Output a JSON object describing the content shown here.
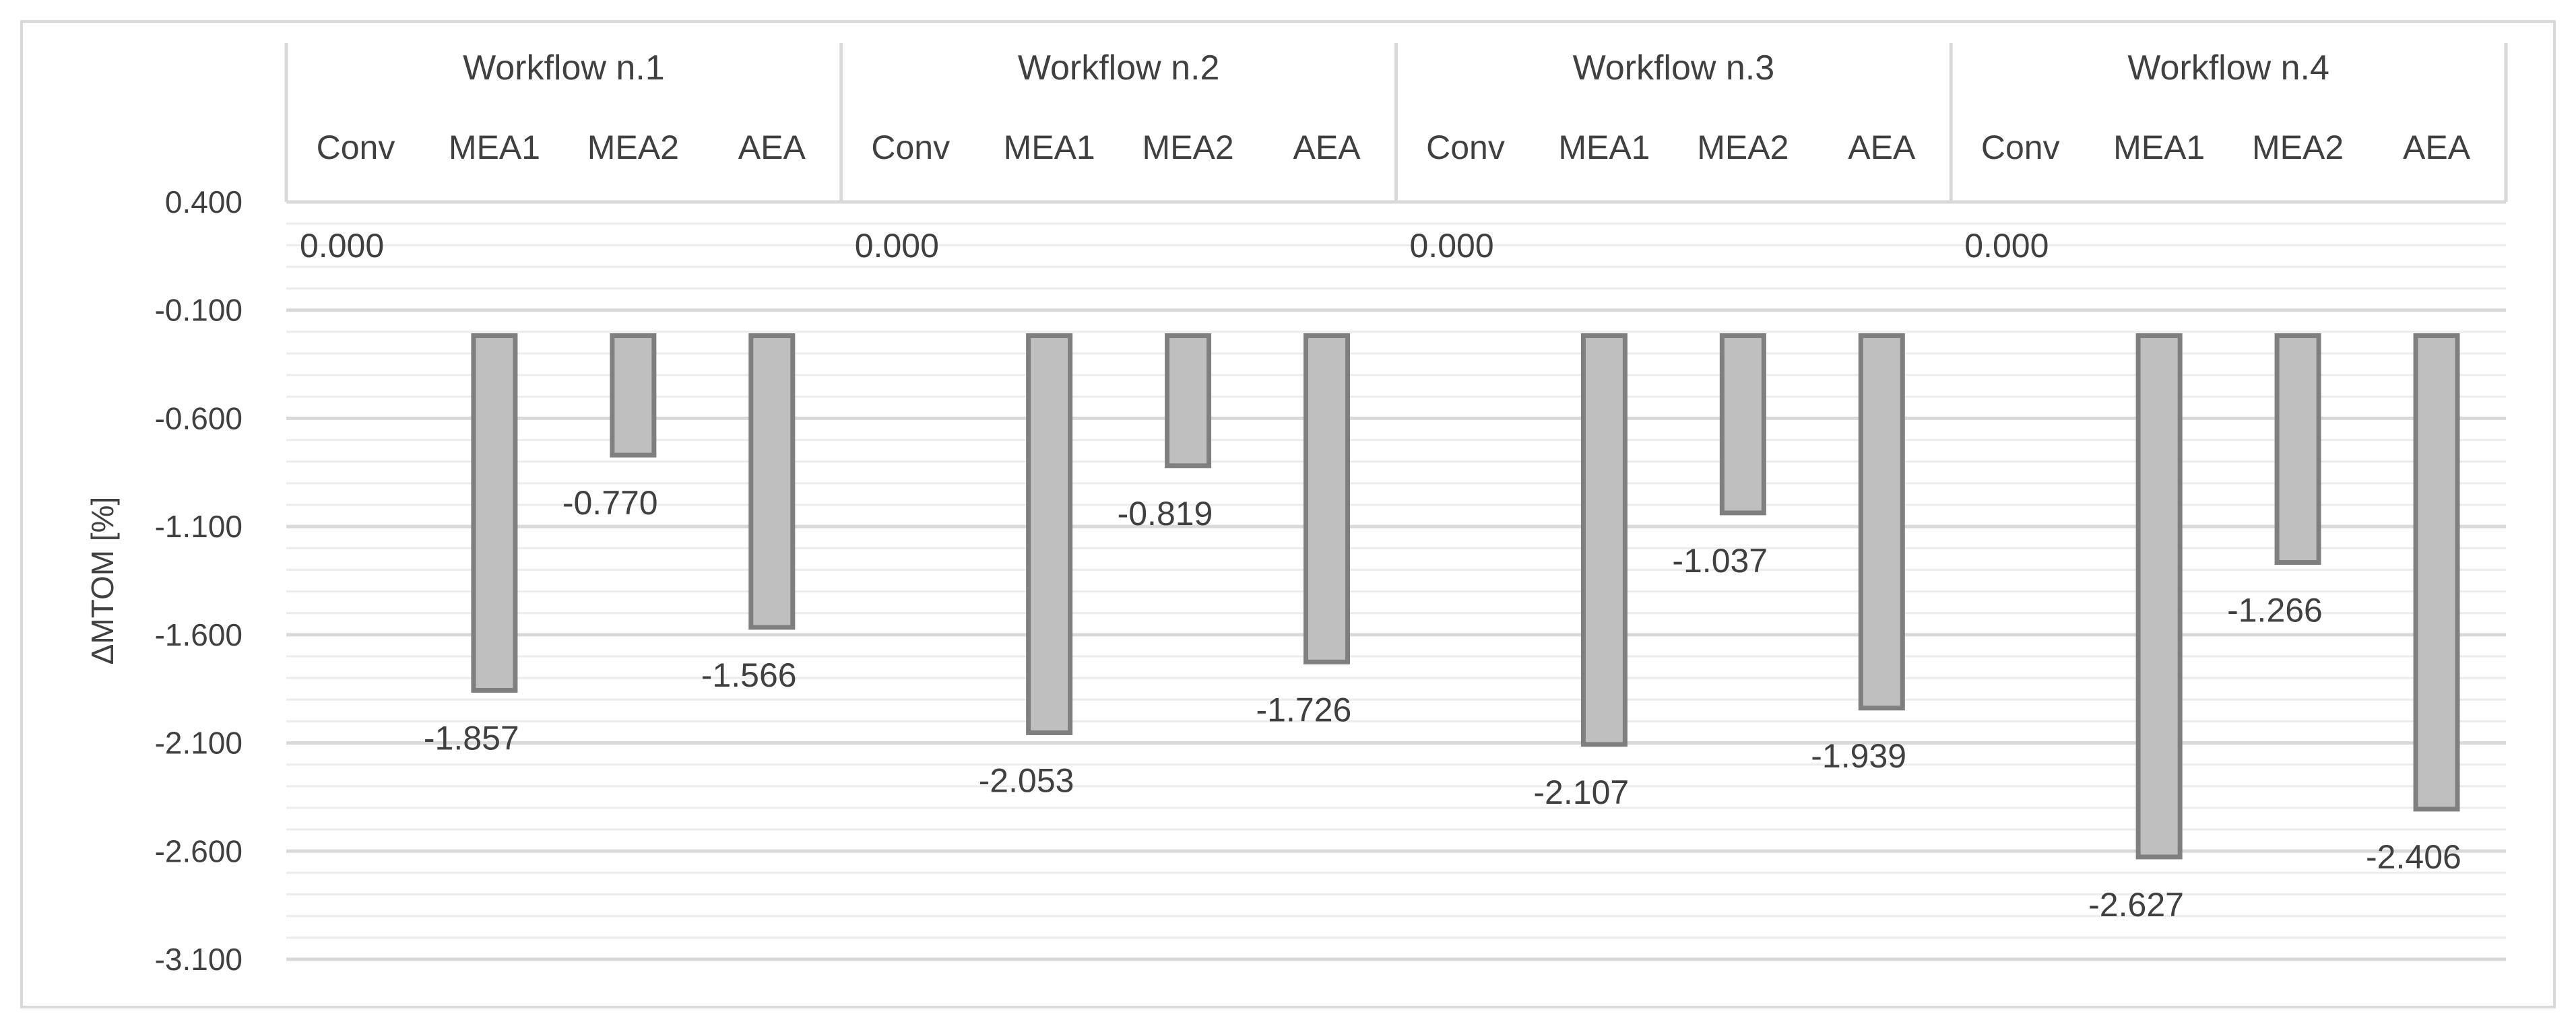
{
  "chart_data": {
    "type": "bar",
    "ylabel": "ΔMTOM [%]",
    "ylim": [
      -3.1,
      0.4
    ],
    "ytick_step": 0.5,
    "ytick_labels": [
      "0.400",
      "-0.100",
      "-0.600",
      "-1.100",
      "-1.600",
      "-2.100",
      "-2.600",
      "-3.100"
    ],
    "grid": true,
    "colors": {
      "bar_fill": "#bfbfbf",
      "bar_stroke": "#7f7f7f",
      "grid_major": "#d9d9d9",
      "grid_minor": "#ececec",
      "text": "#404040",
      "frame": "#d9d9d9"
    },
    "groups": [
      {
        "name": "Workflow n.1",
        "categories": [
          "Conv",
          "MEA1",
          "MEA2",
          "AEA"
        ],
        "values": [
          0.0,
          -1.857,
          -0.77,
          -1.566
        ],
        "labels": [
          "0.000",
          "-1.857",
          "-0.770",
          "-1.566"
        ]
      },
      {
        "name": "Workflow n.2",
        "categories": [
          "Conv",
          "MEA1",
          "MEA2",
          "AEA"
        ],
        "values": [
          0.0,
          -2.053,
          -0.819,
          -1.726
        ],
        "labels": [
          "0.000",
          "-2.053",
          "-0.819",
          "-1.726"
        ]
      },
      {
        "name": "Workflow n.3",
        "categories": [
          "Conv",
          "MEA1",
          "MEA2",
          "AEA"
        ],
        "values": [
          0.0,
          -2.107,
          -1.037,
          -1.939
        ],
        "labels": [
          "0.000",
          "-2.107",
          "-1.037",
          "-1.939"
        ]
      },
      {
        "name": "Workflow n.4",
        "categories": [
          "Conv",
          "MEA1",
          "MEA2",
          "AEA"
        ],
        "values": [
          0.0,
          -2.627,
          -1.266,
          -2.406
        ],
        "labels": [
          "0.000",
          "-2.627",
          "-1.266",
          "-2.406"
        ]
      }
    ]
  }
}
